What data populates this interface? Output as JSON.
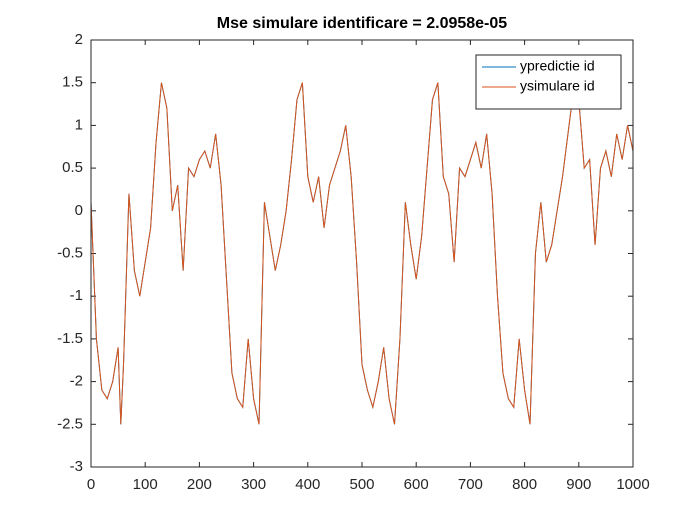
{
  "chart_data": {
    "type": "line",
    "title": "Mse simulare identificare = 2.0958e-05",
    "x": [
      0,
      10,
      20,
      30,
      40,
      50,
      55,
      60,
      70,
      80,
      90,
      100,
      110,
      120,
      130,
      140,
      150,
      160,
      170,
      180,
      190,
      200,
      210,
      220,
      230,
      240,
      250,
      260,
      270,
      280,
      290,
      300,
      310,
      320,
      330,
      340,
      350,
      360,
      370,
      380,
      390,
      400,
      410,
      420,
      430,
      440,
      450,
      460,
      470,
      480,
      490,
      500,
      510,
      520,
      530,
      540,
      550,
      560,
      570,
      580,
      590,
      600,
      610,
      620,
      630,
      640,
      650,
      660,
      670,
      680,
      690,
      700,
      710,
      720,
      730,
      740,
      750,
      760,
      770,
      780,
      790,
      800,
      810,
      820,
      830,
      840,
      850,
      860,
      870,
      880,
      890,
      900,
      910,
      920,
      930,
      940,
      950,
      960,
      970,
      980,
      990,
      1000
    ],
    "series": [
      {
        "name": "ypredictie id",
        "color": "#0072BD",
        "values": [
          0.1,
          -1.5,
          -2.1,
          -2.2,
          -2.0,
          -1.6,
          -2.5,
          -1.8,
          0.2,
          -0.7,
          -1.0,
          -0.6,
          -0.2,
          0.8,
          1.5,
          1.2,
          0.0,
          0.3,
          -0.7,
          0.5,
          0.4,
          0.6,
          0.7,
          0.5,
          0.9,
          0.3,
          -0.8,
          -1.9,
          -2.2,
          -2.3,
          -1.5,
          -2.2,
          -2.5,
          0.1,
          -0.3,
          -0.7,
          -0.4,
          0.0,
          0.6,
          1.3,
          1.5,
          0.4,
          0.1,
          0.4,
          -0.2,
          0.3,
          0.5,
          0.7,
          1.0,
          0.4,
          -0.6,
          -1.8,
          -2.1,
          -2.3,
          -2.0,
          -1.6,
          -2.2,
          -2.5,
          -1.5,
          0.1,
          -0.4,
          -0.8,
          -0.3,
          0.5,
          1.3,
          1.5,
          0.4,
          0.2,
          -0.6,
          0.5,
          0.4,
          0.6,
          0.8,
          0.5,
          0.9,
          0.2,
          -1.0,
          -1.9,
          -2.2,
          -2.3,
          -1.5,
          -2.1,
          -2.5,
          -0.5,
          0.1,
          -0.6,
          -0.4,
          0.0,
          0.4,
          0.9,
          1.4,
          1.3,
          0.5,
          0.6,
          -0.4,
          0.5,
          0.7,
          0.4,
          0.9,
          0.6,
          1.0,
          0.7
        ]
      },
      {
        "name": "ysimulare id",
        "color": "#D95319",
        "values": [
          0.1,
          -1.5,
          -2.1,
          -2.2,
          -2.0,
          -1.6,
          -2.5,
          -1.8,
          0.2,
          -0.7,
          -1.0,
          -0.6,
          -0.2,
          0.8,
          1.5,
          1.2,
          0.0,
          0.3,
          -0.7,
          0.5,
          0.4,
          0.6,
          0.7,
          0.5,
          0.9,
          0.3,
          -0.8,
          -1.9,
          -2.2,
          -2.3,
          -1.5,
          -2.2,
          -2.5,
          0.1,
          -0.3,
          -0.7,
          -0.4,
          0.0,
          0.6,
          1.3,
          1.5,
          0.4,
          0.1,
          0.4,
          -0.2,
          0.3,
          0.5,
          0.7,
          1.0,
          0.4,
          -0.6,
          -1.8,
          -2.1,
          -2.3,
          -2.0,
          -1.6,
          -2.2,
          -2.5,
          -1.5,
          0.1,
          -0.4,
          -0.8,
          -0.3,
          0.5,
          1.3,
          1.5,
          0.4,
          0.2,
          -0.6,
          0.5,
          0.4,
          0.6,
          0.8,
          0.5,
          0.9,
          0.2,
          -1.0,
          -1.9,
          -2.2,
          -2.3,
          -1.5,
          -2.1,
          -2.5,
          -0.5,
          0.1,
          -0.6,
          -0.4,
          0.0,
          0.4,
          0.9,
          1.4,
          1.3,
          0.5,
          0.6,
          -0.4,
          0.5,
          0.7,
          0.4,
          0.9,
          0.6,
          1.0,
          0.7
        ]
      }
    ],
    "xlim": [
      0,
      1000
    ],
    "xticks": [
      0,
      100,
      200,
      300,
      400,
      500,
      600,
      700,
      800,
      900,
      1000
    ],
    "ylim": [
      -3,
      2
    ],
    "yticks": [
      -3,
      -2.5,
      -2,
      -1.5,
      -1,
      -0.5,
      0,
      0.5,
      1,
      1.5,
      2
    ],
    "grid": false,
    "legend": "upper right"
  }
}
